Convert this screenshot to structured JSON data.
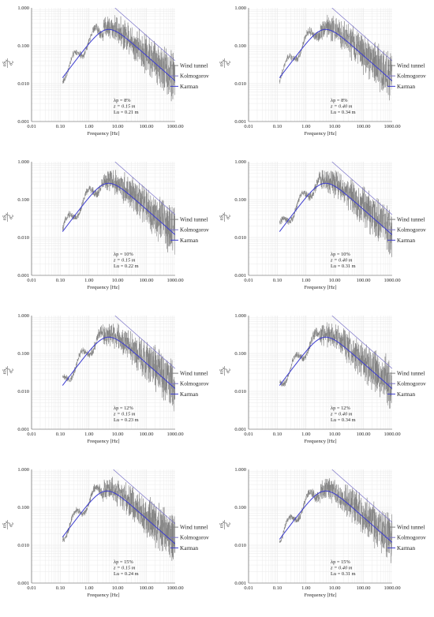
{
  "figure": {
    "x_ticks": [
      "0.01",
      "0.10",
      "1.00",
      "10.00",
      "100.00",
      "1000.00"
    ],
    "y_ticks": [
      "1.000",
      "0.100",
      "0.010",
      "0.001"
    ],
    "xlabel": "Frequency [Hz]",
    "ylabel_numerator": "nS",
    "ylabel_numerator_sub": "u",
    "ylabel_denominator": "σ",
    "ylabel_denominator_sub": "u",
    "ylabel_denominator_sup": "2",
    "legend": [
      "Wind tunnel",
      "Kolmogorov",
      "Karman"
    ]
  },
  "colors": {
    "wind_tunnel": "#7f7f7f",
    "kolmogorov": "#7b74c8",
    "karman": "#3b3bd0",
    "grid": "#e6e6e6",
    "axis": "#555555"
  },
  "chart_data": [
    {
      "type": "line",
      "xscale": "log",
      "yscale": "log",
      "xlim": [
        0.01,
        1000
      ],
      "ylim": [
        0.001,
        1
      ],
      "grid": true,
      "legend_placement": "right",
      "series": [
        {
          "name": "Wind tunnel"
        },
        {
          "name": "Kolmogorov",
          "slope": "-2/3"
        },
        {
          "name": "Karman"
        }
      ],
      "annotation": {
        "lambda_line": "λp = 8%",
        "z_line": "z = 0.15 m",
        "lu_line": "Lu = 0.21 m"
      },
      "params": {
        "lu": 0.21,
        "peak_x": 8,
        "peak_y": 0.27,
        "kolmogorov_x_at_ymax": 8
      }
    },
    {
      "type": "line",
      "xscale": "log",
      "yscale": "log",
      "xlim": [
        0.01,
        1000
      ],
      "ylim": [
        0.001,
        1
      ],
      "grid": true,
      "legend_placement": "right",
      "series": [
        {
          "name": "Wind tunnel"
        },
        {
          "name": "Kolmogorov",
          "slope": "-2/3"
        },
        {
          "name": "Karman"
        }
      ],
      "annotation": {
        "lambda_line": "λp = 8%",
        "z_line": "z = 0.40 m",
        "lu_line": "Lu = 0.34 m"
      },
      "params": {
        "lu": 0.34,
        "peak_x": 8,
        "peak_y": 0.27,
        "kolmogorov_x_at_ymax": 8
      }
    },
    {
      "type": "line",
      "xscale": "log",
      "yscale": "log",
      "xlim": [
        0.01,
        1000
      ],
      "ylim": [
        0.001,
        1
      ],
      "grid": true,
      "legend_placement": "right",
      "series": [
        {
          "name": "Wind tunnel"
        },
        {
          "name": "Kolmogorov",
          "slope": "-2/3"
        },
        {
          "name": "Karman"
        }
      ],
      "annotation": {
        "lambda_line": "λp = 10%",
        "z_line": "z = 0.15 m",
        "lu_line": "Lu = 0.22 m"
      },
      "params": {
        "lu": 0.22,
        "peak_x": 8,
        "peak_y": 0.27,
        "kolmogorov_x_at_ymax": 8
      }
    },
    {
      "type": "line",
      "xscale": "log",
      "yscale": "log",
      "xlim": [
        0.01,
        1000
      ],
      "ylim": [
        0.001,
        1
      ],
      "grid": true,
      "legend_placement": "right",
      "series": [
        {
          "name": "Wind tunnel"
        },
        {
          "name": "Kolmogorov",
          "slope": "-2/3"
        },
        {
          "name": "Karman"
        }
      ],
      "annotation": {
        "lambda_line": "λp = 10%",
        "z_line": "z = 0.40 m",
        "lu_line": "Lu = 0.31 m"
      },
      "params": {
        "lu": 0.31,
        "peak_x": 8,
        "peak_y": 0.27,
        "kolmogorov_x_at_ymax": 8
      }
    },
    {
      "type": "line",
      "xscale": "log",
      "yscale": "log",
      "xlim": [
        0.01,
        1000
      ],
      "ylim": [
        0.001,
        1
      ],
      "grid": true,
      "legend_placement": "right",
      "series": [
        {
          "name": "Wind tunnel"
        },
        {
          "name": "Kolmogorov",
          "slope": "-2/3"
        },
        {
          "name": "Karman"
        }
      ],
      "annotation": {
        "lambda_line": "λp = 12%",
        "z_line": "z = 0.15 m",
        "lu_line": "Lu = 0.23 m"
      },
      "params": {
        "lu": 0.23,
        "peak_x": 8,
        "peak_y": 0.27,
        "kolmogorov_x_at_ymax": 8
      }
    },
    {
      "type": "line",
      "xscale": "log",
      "yscale": "log",
      "xlim": [
        0.01,
        1000
      ],
      "ylim": [
        0.001,
        1
      ],
      "grid": true,
      "legend_placement": "right",
      "series": [
        {
          "name": "Wind tunnel"
        },
        {
          "name": "Kolmogorov",
          "slope": "-2/3"
        },
        {
          "name": "Karman"
        }
      ],
      "annotation": {
        "lambda_line": "λp = 12%",
        "z_line": "z = 0.40 m",
        "lu_line": "Lu = 0.34 m"
      },
      "params": {
        "lu": 0.34,
        "peak_x": 8,
        "peak_y": 0.27,
        "kolmogorov_x_at_ymax": 8
      }
    },
    {
      "type": "line",
      "xscale": "log",
      "yscale": "log",
      "xlim": [
        0.01,
        1000
      ],
      "ylim": [
        0.001,
        1
      ],
      "grid": true,
      "legend_placement": "right",
      "series": [
        {
          "name": "Wind tunnel"
        },
        {
          "name": "Kolmogorov",
          "slope": "-2/3"
        },
        {
          "name": "Karman"
        }
      ],
      "annotation": {
        "lambda_line": "λp = 15%",
        "z_line": "z = 0.15 m",
        "lu_line": "Lu = 0.24 m"
      },
      "params": {
        "lu": 0.24,
        "peak_x": 7,
        "peak_y": 0.27,
        "kolmogorov_x_at_ymax": 7
      }
    },
    {
      "type": "line",
      "xscale": "log",
      "yscale": "log",
      "xlim": [
        0.01,
        1000
      ],
      "ylim": [
        0.001,
        1
      ],
      "grid": true,
      "legend_placement": "right",
      "series": [
        {
          "name": "Wind tunnel"
        },
        {
          "name": "Kolmogorov",
          "slope": "-2/3"
        },
        {
          "name": "Karman"
        }
      ],
      "annotation": {
        "lambda_line": "λp = 15%",
        "z_line": "z = 0.40 m",
        "lu_line": "Lu = 0.31 m"
      },
      "params": {
        "lu": 0.31,
        "peak_x": 8,
        "peak_y": 0.27,
        "kolmogorov_x_at_ymax": 8
      }
    }
  ]
}
